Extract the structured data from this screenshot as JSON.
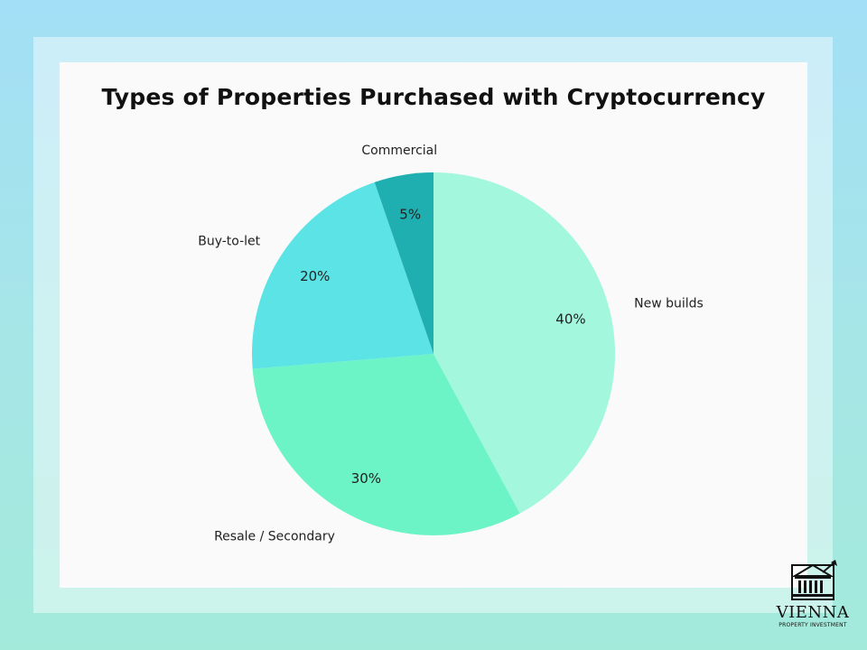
{
  "chart_data": {
    "type": "pie",
    "title": "Types of Properties Purchased with Cryptocurrency",
    "slices": [
      {
        "label": "New builds",
        "value": 40,
        "value_label": "40%",
        "color": "#a3f7dc"
      },
      {
        "label": "Resale / Secondary",
        "value": 30,
        "value_label": "30%",
        "color": "#6cf4c7"
      },
      {
        "label": "Buy-to-let",
        "value": 20,
        "value_label": "20%",
        "color": "#5ce3e6"
      },
      {
        "label": "Commercial",
        "value": 5,
        "value_label": "5%",
        "color": "#1fafb0"
      }
    ]
  },
  "branding": {
    "name": "VIENNA",
    "tagline": "PROPERTY INVESTMENT",
    "icon": "bank-building-icon"
  }
}
